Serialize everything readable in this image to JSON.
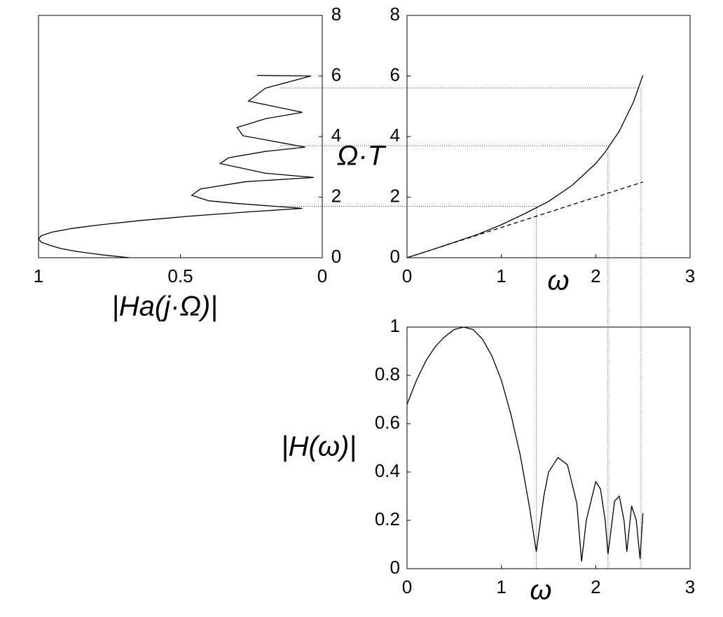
{
  "chart_data": [
    {
      "type": "line",
      "xlabel": "|Ha(j·Ω)|",
      "ylabel": "Ω·T",
      "xlim": [
        1,
        0
      ],
      "xticks": [
        1,
        0.5,
        0
      ],
      "ylim": [
        0,
        8
      ],
      "yticks": [
        0,
        2,
        4,
        6,
        8
      ],
      "x": [
        0.68,
        0.78,
        0.86,
        0.92,
        0.96,
        0.99,
        1.0,
        0.99,
        0.95,
        0.88,
        0.78,
        0.64,
        0.47,
        0.25,
        0.07,
        0.3,
        0.4,
        0.46,
        0.43,
        0.27,
        0.03,
        0.2,
        0.36,
        0.33,
        0.2,
        0.06,
        0.28,
        0.3,
        0.2,
        0.07,
        0.26,
        0.2,
        0.04,
        0.23
      ],
      "series": [
        {
          "color": "#000000",
          "style": "solid",
          "values": [
            0,
            0.1,
            0.2,
            0.3,
            0.41,
            0.51,
            0.62,
            0.73,
            0.85,
            0.97,
            1.09,
            1.23,
            1.37,
            1.52,
            1.63,
            1.79,
            1.88,
            2.06,
            2.27,
            2.51,
            2.65,
            2.79,
            3.11,
            3.3,
            3.51,
            3.65,
            4.03,
            4.3,
            4.59,
            4.8,
            5.17,
            5.6,
            6.0,
            6.02
          ]
        }
      ]
    },
    {
      "type": "line",
      "xlabel": "ω",
      "xlim": [
        0,
        3
      ],
      "xticks": [
        0,
        1,
        2,
        3
      ],
      "ylim": [
        0,
        8
      ],
      "yticks": [
        0,
        2,
        4,
        6,
        8
      ],
      "x": [
        0,
        0.25,
        0.5,
        0.75,
        1,
        1.25,
        1.5,
        1.75,
        2,
        2.1,
        2.25,
        2.4,
        2.5
      ],
      "series": [
        {
          "color": "#000000",
          "style": "solid",
          "values": [
            0,
            0.25,
            0.51,
            0.77,
            1.09,
            1.46,
            1.86,
            2.39,
            3.11,
            3.49,
            4.18,
            5.14,
            6.02
          ]
        },
        {
          "color": "#000000",
          "style": "dashed",
          "values": [
            0,
            0.25,
            0.5,
            0.75,
            1,
            1.25,
            1.5,
            1.75,
            2,
            2.1,
            2.25,
            2.4,
            2.5
          ]
        }
      ],
      "guides": {
        "x": [
          1.37,
          2.13,
          2.48
        ],
        "y": [
          1.7,
          3.7,
          5.6
        ]
      }
    },
    {
      "type": "line",
      "xlabel": "ω",
      "ylabel": "|H(ω)|",
      "xlim": [
        0,
        3
      ],
      "xticks": [
        0,
        1,
        2,
        3
      ],
      "ylim": [
        0,
        1
      ],
      "yticks": [
        0,
        0.2,
        0.4,
        0.6,
        0.8,
        1
      ],
      "x": [
        0,
        0.1,
        0.2,
        0.3,
        0.4,
        0.5,
        0.6,
        0.7,
        0.8,
        0.9,
        1.0,
        1.1,
        1.2,
        1.3,
        1.37,
        1.45,
        1.5,
        1.6,
        1.7,
        1.8,
        1.85,
        1.9,
        2.0,
        2.05,
        2.1,
        2.13,
        2.2,
        2.25,
        2.3,
        2.33,
        2.38,
        2.43,
        2.47,
        2.5
      ],
      "series": [
        {
          "color": "#000000",
          "style": "solid",
          "values": [
            0.68,
            0.78,
            0.86,
            0.92,
            0.96,
            0.99,
            1.0,
            0.99,
            0.95,
            0.88,
            0.78,
            0.64,
            0.47,
            0.25,
            0.07,
            0.3,
            0.4,
            0.46,
            0.43,
            0.27,
            0.03,
            0.2,
            0.36,
            0.33,
            0.2,
            0.06,
            0.28,
            0.3,
            0.2,
            0.07,
            0.26,
            0.2,
            0.04,
            0.23
          ]
        }
      ]
    }
  ]
}
